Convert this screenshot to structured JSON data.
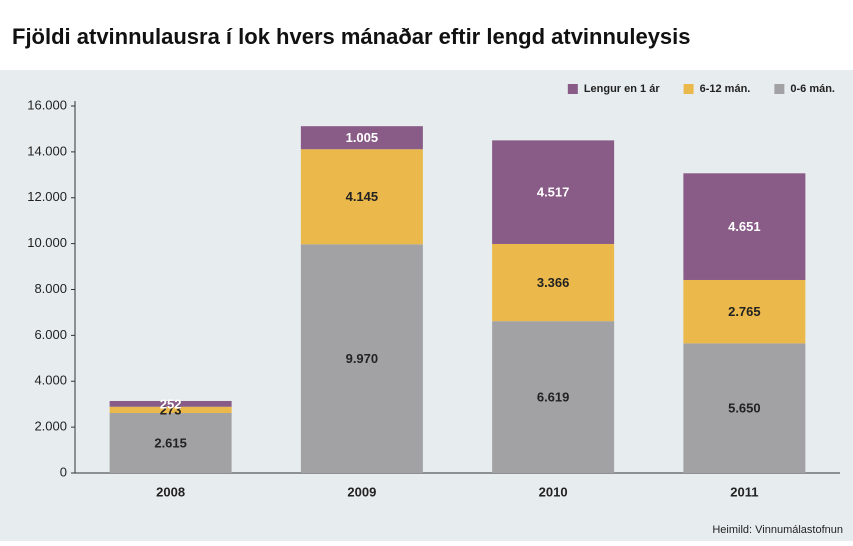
{
  "chart_data": {
    "type": "stacked_bar",
    "title": "Fjöldi atvinnulausra í lok hvers mánaðar eftir lengd atvinnuleysis",
    "categories": [
      "2008",
      "2009",
      "2010",
      "2011"
    ],
    "series": [
      {
        "name": "0-6 mán.",
        "color": "#a2a2a4",
        "values": [
          2615,
          9970,
          6619,
          5650
        ],
        "value_labels": [
          "2.615",
          "9.970",
          "6.619",
          "5.650"
        ]
      },
      {
        "name": "6-12 mán.",
        "color": "#ebb94b",
        "values": [
          273,
          4145,
          3366,
          2765
        ],
        "value_labels": [
          "273",
          "4.145",
          "3.366",
          "2.765"
        ]
      },
      {
        "name": "Lengur en 1 ár",
        "color": "#895b87",
        "values": [
          252,
          1005,
          4517,
          4651
        ],
        "value_labels": [
          "252",
          "1.005",
          "4.517",
          "4.651"
        ]
      }
    ],
    "ylim": [
      0,
      16000
    ],
    "yticks": [
      0,
      {
        "value": 2000,
        "label": "2.000"
      },
      {
        "value": 4000,
        "label": "4.000"
      },
      {
        "value": 6000,
        "label": "6.000"
      },
      {
        "value": 8000,
        "label": "8.000"
      },
      {
        "value": 10000,
        "label": "10.000"
      },
      {
        "value": 12000,
        "label": "12.000"
      },
      {
        "value": 14000,
        "label": "14.000"
      },
      {
        "value": 16000,
        "label": "16.000"
      }
    ],
    "grid": false,
    "legend": "top-right",
    "source": "Heimild: Vinnumálastofnun"
  }
}
